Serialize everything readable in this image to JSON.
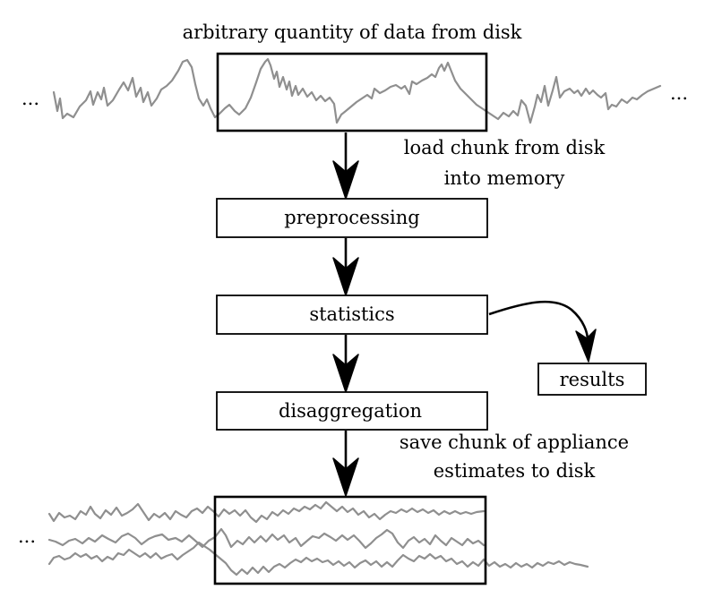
{
  "title": "arbitrary quantity of data from disk",
  "ellipsis": "...",
  "steps": {
    "load_label": [
      "load chunk from disk",
      "into memory"
    ],
    "preprocessing": "preprocessing",
    "statistics": "statistics",
    "results": "results",
    "disaggregation": "disaggregation",
    "save_label": [
      "save chunk of appliance",
      "estimates to disk"
    ]
  },
  "colors": {
    "signal": "#8f8f8f",
    "outline": "#000000"
  }
}
